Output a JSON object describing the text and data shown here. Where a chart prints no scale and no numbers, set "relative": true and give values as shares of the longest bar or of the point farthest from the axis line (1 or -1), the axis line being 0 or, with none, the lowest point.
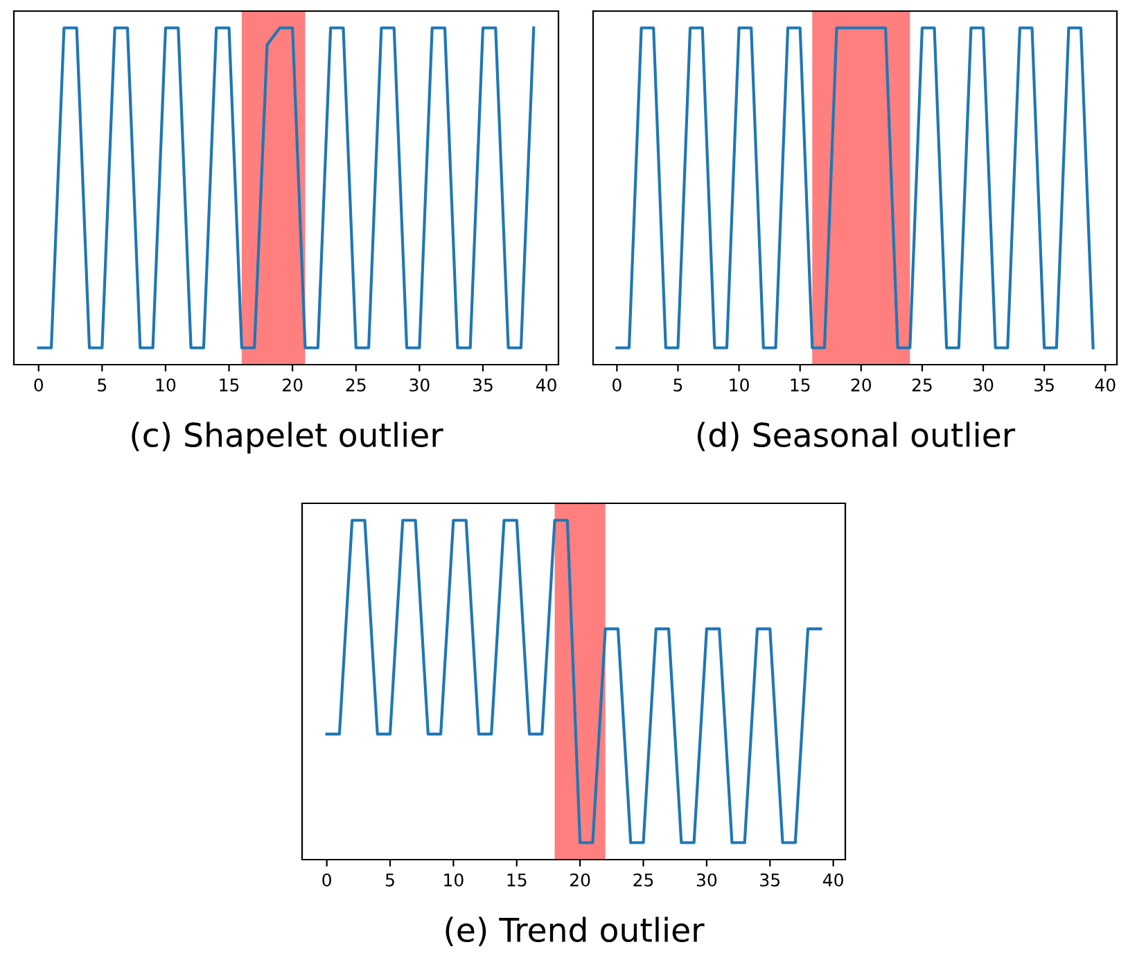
{
  "chart_data": [
    {
      "type": "line",
      "relative": true,
      "xlabel": "(c) Shapelet outlier",
      "xlim": [
        -1.95,
        40.95
      ],
      "xticks": [
        0,
        5,
        10,
        15,
        20,
        25,
        30,
        35,
        40
      ],
      "tick_labels": "x",
      "grid": false,
      "x": [
        0,
        1,
        2,
        3,
        4,
        5,
        6,
        7,
        8,
        9,
        10,
        11,
        12,
        13,
        14,
        15,
        16,
        17,
        18,
        19,
        20,
        21,
        22,
        23,
        24,
        25,
        26,
        27,
        28,
        29,
        30,
        31,
        32,
        33,
        34,
        35,
        36,
        37,
        38,
        39
      ],
      "series": [
        {
          "color": "#1f77b4",
          "values": [
            0.05,
            0.05,
            1,
            1,
            0.05,
            0.05,
            1,
            1,
            0.05,
            0.05,
            1,
            1,
            0.05,
            0.05,
            1,
            1,
            0.05,
            0.05,
            0.95,
            1,
            1,
            0.05,
            0.05,
            1,
            1,
            0.05,
            0.05,
            1,
            1,
            0.05,
            0.05,
            1,
            1,
            0.05,
            0.05,
            1,
            1,
            0.05,
            0.05,
            1
          ]
        }
      ],
      "bands": [
        {
          "axis": "x",
          "from": 16,
          "to": 21,
          "color": "#ff0000"
        }
      ]
    },
    {
      "type": "line",
      "relative": true,
      "xlabel": "(d) Seasonal outlier",
      "xlim": [
        -1.95,
        40.95
      ],
      "xticks": [
        0,
        5,
        10,
        15,
        20,
        25,
        30,
        35,
        40
      ],
      "tick_labels": "x",
      "grid": false,
      "x": [
        0,
        1,
        2,
        3,
        4,
        5,
        6,
        7,
        8,
        9,
        10,
        11,
        12,
        13,
        14,
        15,
        16,
        17,
        18,
        19,
        20,
        21,
        22,
        23,
        24,
        25,
        26,
        27,
        28,
        29,
        30,
        31,
        32,
        33,
        34,
        35,
        36,
        37,
        38,
        39
      ],
      "series": [
        {
          "color": "#1f77b4",
          "values": [
            0.05,
            0.05,
            1,
            1,
            0.05,
            0.05,
            1,
            1,
            0.05,
            0.05,
            1,
            1,
            0.05,
            0.05,
            1,
            1,
            0.05,
            0.05,
            1,
            1,
            1,
            1,
            1,
            0.05,
            0.05,
            1,
            1,
            0.05,
            0.05,
            1,
            1,
            0.05,
            0.05,
            1,
            1,
            0.05,
            0.05,
            1,
            1,
            0.05
          ]
        }
      ],
      "bands": [
        {
          "axis": "x",
          "from": 16,
          "to": 24,
          "color": "#ff0000"
        }
      ]
    },
    {
      "type": "line",
      "relative": true,
      "xlabel": "(e) Trend outlier",
      "xlim": [
        -1.95,
        40.95
      ],
      "xticks": [
        0,
        5,
        10,
        15,
        20,
        25,
        30,
        35,
        40
      ],
      "tick_labels": "x",
      "grid": false,
      "x": [
        0,
        1,
        2,
        3,
        4,
        5,
        6,
        7,
        8,
        9,
        10,
        11,
        12,
        13,
        14,
        15,
        16,
        17,
        18,
        19,
        20,
        21,
        22,
        23,
        24,
        25,
        26,
        27,
        28,
        29,
        30,
        31,
        32,
        33,
        34,
        35,
        36,
        37,
        38,
        39
      ],
      "series": [
        {
          "color": "#1f77b4",
          "values": [
            0.37,
            0.37,
            1,
            1,
            0.37,
            0.37,
            1,
            1,
            0.37,
            0.37,
            1,
            1,
            0.37,
            0.37,
            1,
            1,
            0.37,
            0.37,
            1,
            1,
            0.05,
            0.05,
            0.68,
            0.68,
            0.05,
            0.05,
            0.68,
            0.68,
            0.05,
            0.05,
            0.68,
            0.68,
            0.05,
            0.05,
            0.68,
            0.68,
            0.05,
            0.05,
            0.68,
            0.68
          ]
        }
      ],
      "bands": [
        {
          "axis": "x",
          "from": 18,
          "to": 22,
          "color": "#ff0000"
        }
      ]
    }
  ]
}
